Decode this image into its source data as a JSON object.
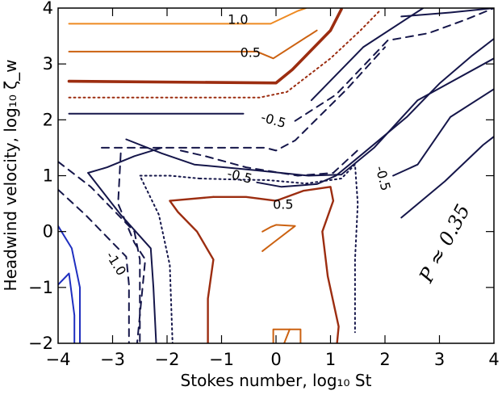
{
  "chart_data": {
    "type": "contour",
    "xlabel": "Stokes number, log₁₀ St",
    "ylabel": "Headwind velocity, log₁₀ ζ_w",
    "xlim": [
      -4,
      4
    ],
    "ylim": [
      -2,
      4
    ],
    "xticks": [
      -4,
      -3,
      -2,
      -1,
      0,
      1,
      2,
      3,
      4
    ],
    "yticks": [
      -2,
      -1,
      0,
      1,
      2,
      3,
      4
    ],
    "xtick_labels": [
      "−4",
      "−3",
      "−2",
      "−1",
      "0",
      "1",
      "2",
      "3",
      "4"
    ],
    "ytick_labels": [
      "−2",
      "−1",
      "0",
      "1",
      "2",
      "3",
      "4"
    ],
    "annotation": "P ≈ 0.35",
    "colors": {
      "level_1_0": "#ee8a22",
      "level_0_75": "#cc6211",
      "level_0_5": "#9c2d10",
      "level_0_25": "#9c2d10",
      "level_neg": "#15164a",
      "level_neg_1": "#1f2fc0"
    },
    "contour_labels": [
      {
        "text": "1.0",
        "x": -0.7,
        "y": 3.78
      },
      {
        "text": "0.5",
        "x": -0.47,
        "y": 3.19
      },
      {
        "text": "-0.5",
        "x": -0.05,
        "y": 1.98
      },
      {
        "text": "-0.5",
        "x": -0.67,
        "y": 0.98
      },
      {
        "text": "0.5",
        "x": 0.13,
        "y": 0.47
      },
      {
        "text": "-0.5",
        "x": 1.95,
        "y": 0.95
      },
      {
        "text": "-1.0",
        "x": -2.95,
        "y": -0.58
      }
    ],
    "series": [
      {
        "level": 1.0,
        "style": "solid",
        "points": [
          [
            -3.8,
            3.72
          ],
          [
            -0.1,
            3.72
          ],
          [
            0.4,
            3.95
          ],
          [
            0.55,
            4.0
          ]
        ]
      },
      {
        "level": 0.75,
        "style": "solid",
        "points": [
          [
            -3.8,
            3.22
          ],
          [
            -0.35,
            3.22
          ],
          [
            -0.05,
            3.1
          ],
          [
            0.75,
            3.6
          ]
        ]
      },
      {
        "level": 0.5,
        "style": "solid",
        "points": [
          [
            -3.8,
            2.69
          ],
          [
            0.0,
            2.66
          ],
          [
            0.3,
            2.9
          ],
          [
            1.0,
            3.6
          ],
          [
            1.2,
            3.98
          ]
        ]
      },
      {
        "level": 0.25,
        "style": "dotted",
        "points": [
          [
            -3.8,
            2.4
          ],
          [
            -0.3,
            2.4
          ],
          [
            0.2,
            2.5
          ],
          [
            1.0,
            3.1
          ],
          [
            1.55,
            3.6
          ],
          [
            1.9,
            3.95
          ]
        ]
      },
      {
        "level": -0.25,
        "style": "solid",
        "points": [
          [
            -3.8,
            2.11
          ],
          [
            -0.6,
            2.11
          ]
        ]
      },
      {
        "level": -0.5,
        "style": "solid",
        "points": [
          [
            0.65,
            2.35
          ],
          [
            1.6,
            3.3
          ],
          [
            2.7,
            4.0
          ]
        ]
      },
      {
        "level": -0.5,
        "style": "dashed",
        "points": [
          [
            0.35,
            1.98
          ],
          [
            1.1,
            2.45
          ],
          [
            2.05,
            3.42
          ],
          [
            2.8,
            3.55
          ],
          [
            3.5,
            3.8
          ],
          [
            4.0,
            4.0
          ]
        ]
      },
      {
        "level": -0.5,
        "style": "solid",
        "points": [
          [
            2.15,
            1.0
          ],
          [
            2.6,
            1.2
          ],
          [
            3.2,
            2.05
          ],
          [
            4.0,
            2.55
          ]
        ]
      },
      {
        "level": -0.5,
        "style": "solid",
        "points": [
          [
            2.3,
            0.25
          ],
          [
            3.1,
            0.9
          ],
          [
            3.8,
            1.55
          ],
          [
            4.0,
            1.7
          ]
        ]
      },
      {
        "level": -0.5,
        "style": "solid",
        "points": [
          [
            2.3,
            3.85
          ],
          [
            3.2,
            3.92
          ],
          [
            4.0,
            4.0
          ]
        ]
      },
      {
        "level": -0.5,
        "style": "dashed",
        "points": [
          [
            -3.2,
            1.5
          ],
          [
            -0.2,
            1.5
          ],
          [
            0.0,
            1.45
          ],
          [
            0.35,
            1.63
          ],
          [
            1.3,
            2.55
          ],
          [
            2.0,
            3.3
          ]
        ]
      },
      {
        "level": -0.5,
        "style": "dashed",
        "points": [
          [
            -1.75,
            1.45
          ],
          [
            -1.3,
            1.35
          ],
          [
            -0.55,
            1.15
          ],
          [
            0.4,
            1.0
          ],
          [
            1.05,
            1.05
          ],
          [
            1.55,
            1.5
          ]
        ]
      },
      {
        "level": -0.5,
        "style": "solid",
        "points": [
          [
            -2.75,
            1.65
          ],
          [
            -2.1,
            1.4
          ],
          [
            -1.5,
            1.2
          ],
          [
            -0.4,
            1.1
          ],
          [
            0.6,
            1.0
          ],
          [
            1.2,
            1.02
          ],
          [
            1.8,
            1.5
          ],
          [
            2.6,
            2.35
          ],
          [
            4.0,
            3.1
          ]
        ]
      },
      {
        "level": -0.5,
        "style": "solid",
        "points": [
          [
            -0.35,
            0.88
          ],
          [
            0.1,
            0.8
          ],
          [
            0.75,
            0.85
          ],
          [
            1.1,
            1.0
          ],
          [
            1.6,
            1.4
          ],
          [
            2.4,
            2.05
          ],
          [
            3.0,
            2.65
          ],
          [
            3.6,
            3.15
          ],
          [
            4.0,
            3.45
          ]
        ]
      },
      {
        "level": -0.25,
        "style": "dotted",
        "points": [
          [
            -1.4,
            0.95
          ],
          [
            -0.7,
            0.93
          ],
          [
            -0.15,
            0.92
          ],
          [
            0.55,
            0.86
          ],
          [
            1.2,
            0.95
          ],
          [
            1.45,
            1.2
          ],
          [
            1.5,
            0.5
          ],
          [
            1.45,
            -0.5
          ],
          [
            1.45,
            -1.8
          ]
        ]
      },
      {
        "level": -0.25,
        "style": "dotted",
        "points": [
          [
            -1.4,
            0.95
          ],
          [
            -1.95,
            1.0
          ],
          [
            -2.5,
            1.0
          ],
          [
            -2.15,
            0.3
          ],
          [
            -1.95,
            -0.6
          ],
          [
            -1.9,
            -2.0
          ]
        ]
      },
      {
        "level": 0.25,
        "style": "solid",
        "points": [
          [
            -1.15,
            0.62
          ],
          [
            -0.55,
            0.62
          ],
          [
            0.0,
            0.55
          ],
          [
            0.5,
            0.73
          ],
          [
            1.0,
            0.8
          ],
          [
            1.05,
            0.55
          ],
          [
            0.85,
            0.0
          ],
          [
            0.95,
            -0.8
          ],
          [
            1.15,
            -1.7
          ],
          [
            1.12,
            -2.0
          ]
        ]
      },
      {
        "level": 0.25,
        "style": "solid",
        "points": [
          [
            -1.15,
            0.62
          ],
          [
            -1.95,
            0.55
          ],
          [
            -1.8,
            0.35
          ],
          [
            -1.45,
            0.0
          ],
          [
            -1.15,
            -0.5
          ],
          [
            -1.25,
            -1.2
          ],
          [
            -1.25,
            -2.0
          ]
        ]
      },
      {
        "level": 0.75,
        "style": "solid",
        "points": [
          [
            -0.25,
            0.0
          ],
          [
            -0.1,
            0.08
          ],
          [
            0.0,
            0.12
          ],
          [
            0.35,
            0.1
          ],
          [
            -0.05,
            -0.2
          ],
          [
            -0.25,
            -0.35
          ]
        ]
      },
      {
        "level": 0.75,
        "style": "solid",
        "points": [
          [
            -0.05,
            -2.0
          ],
          [
            -0.05,
            -1.75
          ],
          [
            0.25,
            -1.75
          ],
          [
            0.15,
            -2.0
          ]
        ]
      },
      {
        "level": 0.75,
        "style": "solid",
        "points": [
          [
            0.25,
            -1.75
          ],
          [
            0.45,
            -1.75
          ],
          [
            0.45,
            -2.0
          ]
        ]
      },
      {
        "level": -1.0,
        "style": "solid",
        "points": [
          [
            -4.0,
            -0.95
          ],
          [
            -3.8,
            -0.75
          ],
          [
            -3.7,
            -1.5
          ],
          [
            -3.7,
            -2.0
          ]
        ]
      },
      {
        "level": -1.0,
        "style": "solid",
        "points": [
          [
            -4.0,
            0.1
          ],
          [
            -3.75,
            -0.3
          ],
          [
            -3.6,
            -1.0
          ],
          [
            -3.6,
            -2.0
          ]
        ]
      },
      {
        "level": -0.75,
        "style": "dashed",
        "points": [
          [
            -4.0,
            0.75
          ],
          [
            -3.5,
            0.3
          ],
          [
            -3.0,
            -0.2
          ],
          [
            -2.75,
            -0.45
          ],
          [
            -2.7,
            -0.95
          ],
          [
            -2.7,
            -2.0
          ]
        ]
      },
      {
        "level": -0.5,
        "style": "solid",
        "points": [
          [
            -3.45,
            1.05
          ],
          [
            -2.85,
            0.3
          ],
          [
            -2.3,
            -0.3
          ],
          [
            -2.25,
            -1.0
          ],
          [
            -2.2,
            -2.0
          ]
        ]
      },
      {
        "level": -0.5,
        "style": "solid",
        "points": [
          [
            -3.45,
            1.05
          ],
          [
            -3.1,
            1.15
          ],
          [
            -2.6,
            1.35
          ],
          [
            -2.1,
            1.5
          ]
        ]
      },
      {
        "level": -0.75,
        "style": "dashed",
        "points": [
          [
            -2.85,
            1.4
          ],
          [
            -2.9,
            0.5
          ],
          [
            -2.6,
            -0.2
          ],
          [
            -2.4,
            -0.5
          ],
          [
            -2.55,
            -2.0
          ]
        ]
      },
      {
        "level": -0.5,
        "style": "dashed",
        "points": [
          [
            -4.0,
            1.25
          ],
          [
            -3.4,
            0.8
          ],
          [
            -3.0,
            0.4
          ],
          [
            -2.6,
            0.0
          ],
          [
            -2.5,
            -0.5
          ],
          [
            -2.5,
            -2.0
          ]
        ]
      }
    ]
  }
}
